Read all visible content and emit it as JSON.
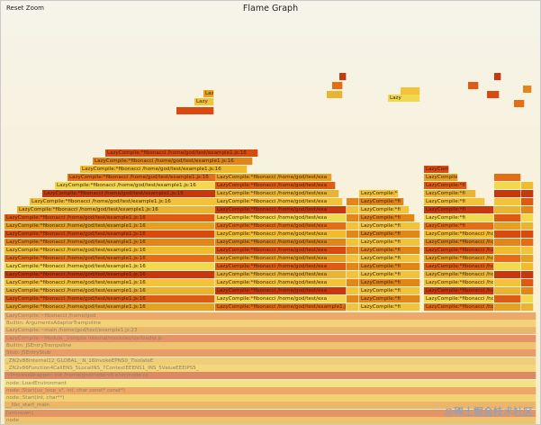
{
  "header": {
    "reset_label": "Reset Zoom",
    "title": "Flame Graph"
  },
  "labels": {
    "lazy_short": "Lazy",
    "lazy_fib": "LazyCompile:*fibonacci /home/god/test/example1.js:16",
    "lazy_fib_trunc": "LazyCompile:*fibonacci /home/god/test/exa",
    "lazy_fib_short": "LazyCompile:*fi",
    "lazy_mid": "LazyCompile:*fibonacci /home/god/test/example1.js:16",
    "bottom_1": "LazyCompile:~fibonacci /home/god",
    "bottom_2": "Builtin: ArgumentsAdaptorTrampoline",
    "bottom_3": "LazyCompile:~main /home/god/test/example1.js:23",
    "bottom_4": "LazyCompile:~Module._compile internal/modules/cjs/loader.js",
    "bottom_5": "Builtin: JSEntryTrampoline",
    "bottom_6": "Stub: JSEntryStub",
    "bottom_7": "_ZN2v88internal12_GLOBAL__N_16InvokeEPNS0_7IsolateE",
    "bottom_8": "_ZN2v86Function4CallENS_5LocalINS_7ContextEEENS1_INS_5ValueEEEiPS5_",
    "bottom_9": "~ProcessWrapper::Init /home/god/node-v8.x/src/node.cc",
    "bottom_10": "node::LoadEnvironment",
    "bottom_11": "node::Start(uv_loop_s*, int, char const* const*)",
    "bottom_12": "node::Start(int, char**)",
    "bottom_13": "__libc_start_main",
    "bottom_14": "[unknown]",
    "bottom_15": "node"
  },
  "watermark": "@稀土掘金技术社区"
}
